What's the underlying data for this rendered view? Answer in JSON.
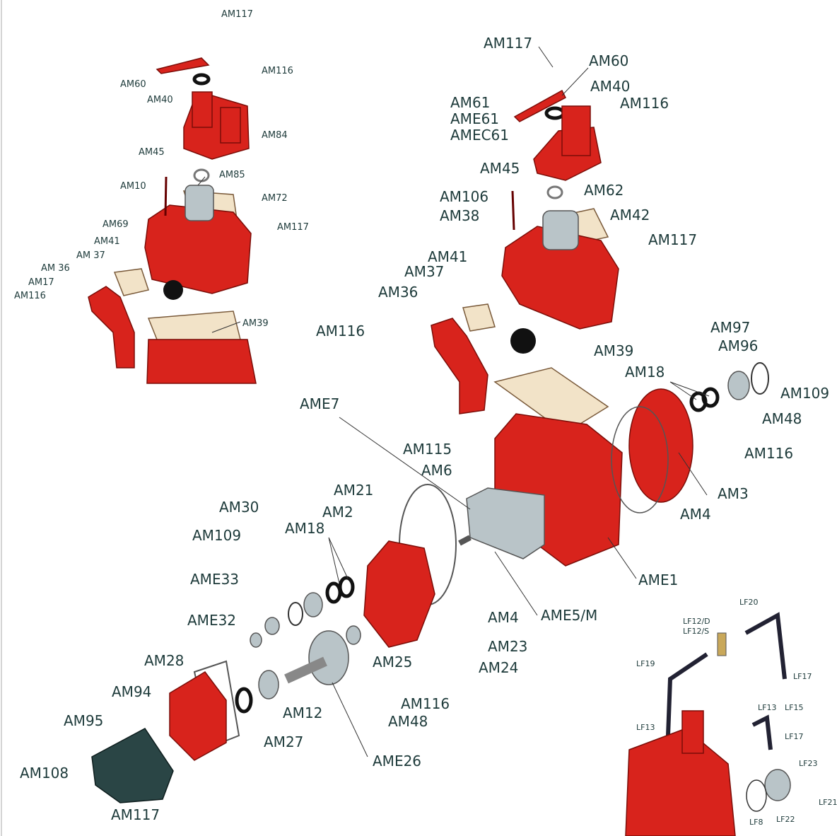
{
  "inset_top_left": {
    "labels": [
      "AM117",
      "AM60",
      "AM116",
      "AM40",
      "AM84",
      "AM45",
      "AM85",
      "AM10",
      "AM72",
      "AM69",
      "AM117",
      "AM41",
      "AM 37",
      "AM 36",
      "AM17",
      "AM116",
      "AM39"
    ]
  },
  "main": {
    "labels": [
      "AM117",
      "AM60",
      "AM40",
      "AM61",
      "AM116",
      "AME61",
      "AMEC61",
      "AM45",
      "AM62",
      "AM106",
      "AM38",
      "AM42",
      "AM117",
      "AM41",
      "AM37",
      "AM36",
      "AM97",
      "AM116",
      "AM96",
      "AM39",
      "AM18",
      "AM109",
      "AME7",
      "AM48",
      "AM115",
      "AM116",
      "AM6",
      "AM21",
      "AM3",
      "AM2",
      "AM30",
      "AM4",
      "AM109",
      "AM18",
      "AME33",
      "AME1",
      "AME32",
      "AM4",
      "AME5/M",
      "AM28",
      "AM23",
      "AM25",
      "AM24",
      "AM94",
      "AM116",
      "AM95",
      "AM12",
      "AM48",
      "AM27",
      "AME26",
      "AM108",
      "AM117"
    ]
  },
  "inset_bottom_right": {
    "labels": [
      "LF20",
      "LF12/D",
      "LF12/S",
      "LF19",
      "LF17",
      "LF13",
      "LF15",
      "LF13",
      "LF17",
      "LF23",
      "LF21",
      "LF8",
      "LF22"
    ]
  }
}
